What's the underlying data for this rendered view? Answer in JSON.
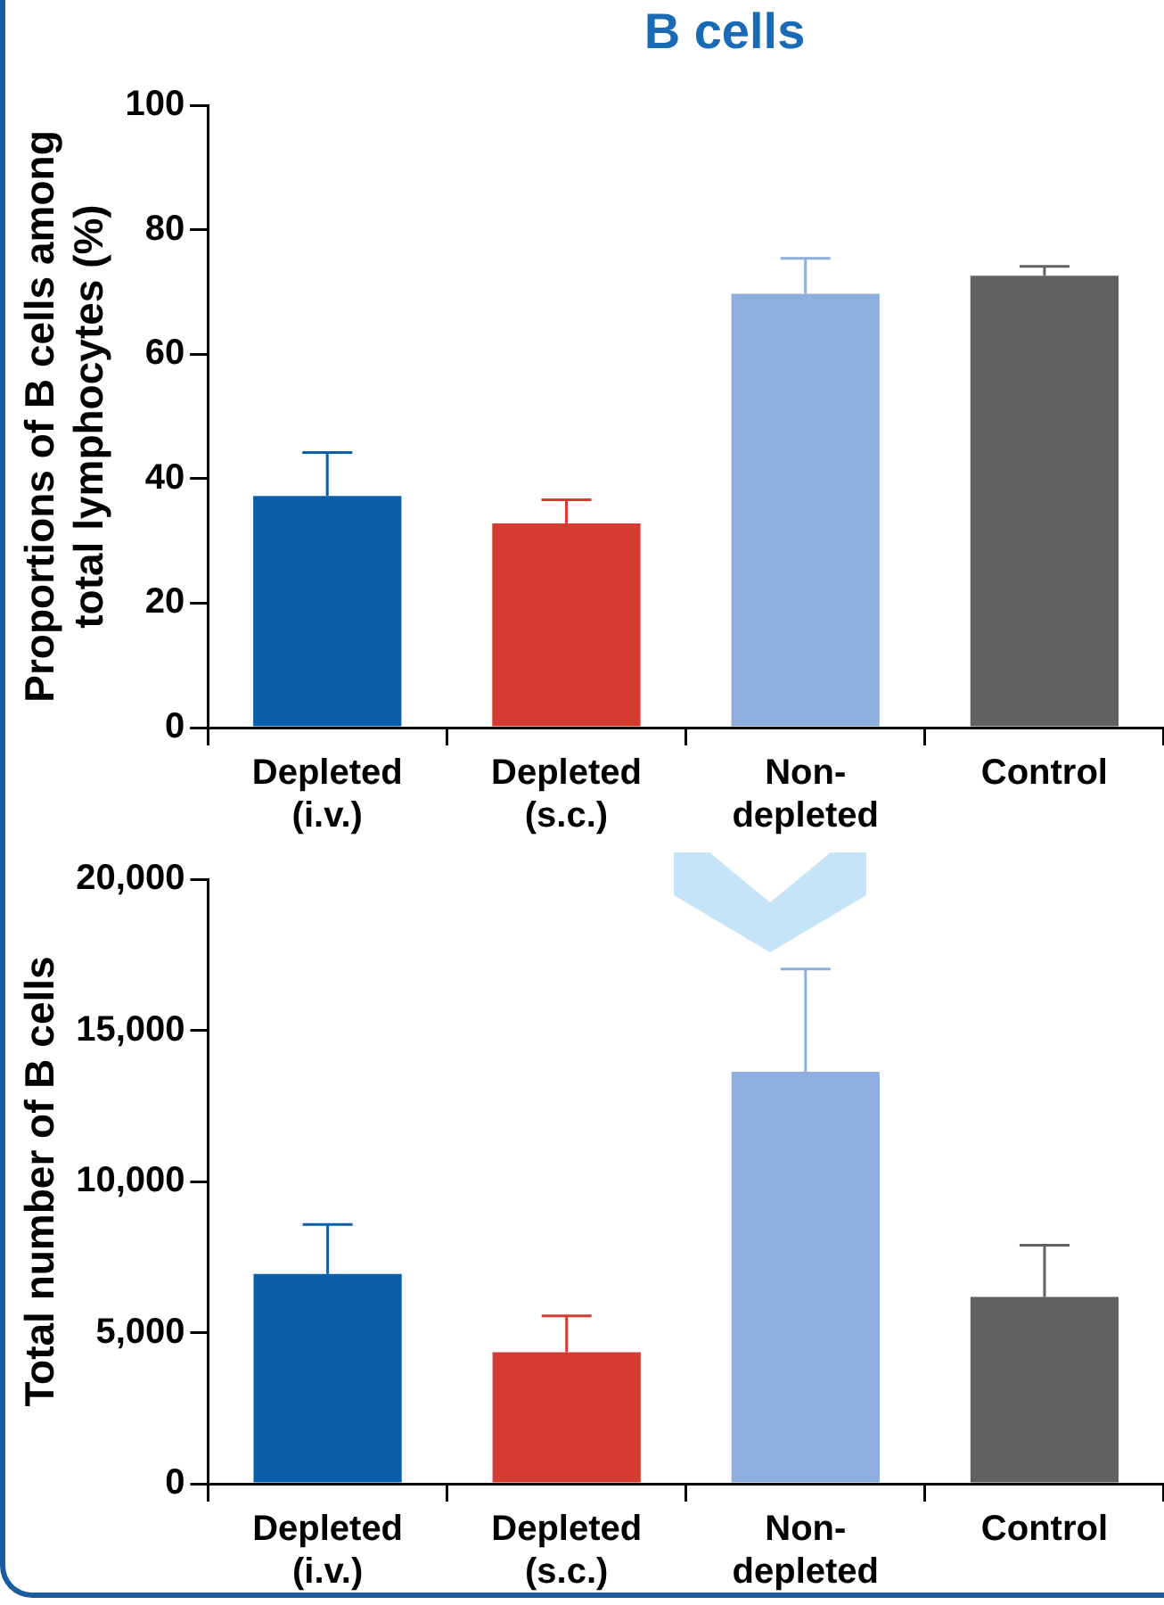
{
  "chart_data": [
    {
      "type": "bar",
      "title": "B cells",
      "ylabel": "Proportions of B cells among total lymphocytes (%)",
      "categories": [
        "Depleted (i.v.)",
        "Depleted (s.c.)",
        "Non-depleted",
        "Control"
      ],
      "values": [
        37.2,
        32.8,
        69.7,
        72.6
      ],
      "colors": [
        "#0b5ea8",
        "#d63b32",
        "#8eaedd",
        "#616161"
      ],
      "errors": [
        [
          37.2,
          44.2
        ],
        [
          32.8,
          36.6
        ],
        [
          69.7,
          75.4
        ],
        [
          72.6,
          74.1
        ]
      ],
      "ylim": [
        0,
        100
      ],
      "yticks": [
        0,
        20,
        40,
        60,
        80,
        100
      ]
    },
    {
      "type": "bar",
      "ylabel": "Total number of B cells",
      "categories": [
        "Depleted (i.v.)",
        "Depleted (s.c.)",
        "Non-depleted",
        "Control"
      ],
      "values": [
        6940,
        4350,
        13630,
        6180
      ],
      "colors": [
        "#0b5ea8",
        "#d63b32",
        "#8eaedd",
        "#616161"
      ],
      "errors": [
        [
          6940,
          8580
        ],
        [
          4350,
          5550
        ],
        [
          13630,
          17030
        ],
        [
          6180,
          7890
        ]
      ],
      "ylim": [
        0,
        20000
      ],
      "yticks": [
        0,
        {
          "value": 5000,
          "label": "5,000"
        },
        {
          "value": 10000,
          "label": "10,000"
        },
        {
          "value": 15000,
          "label": "15,000"
        },
        {
          "value": 20000,
          "label": "20,000"
        }
      ]
    }
  ]
}
